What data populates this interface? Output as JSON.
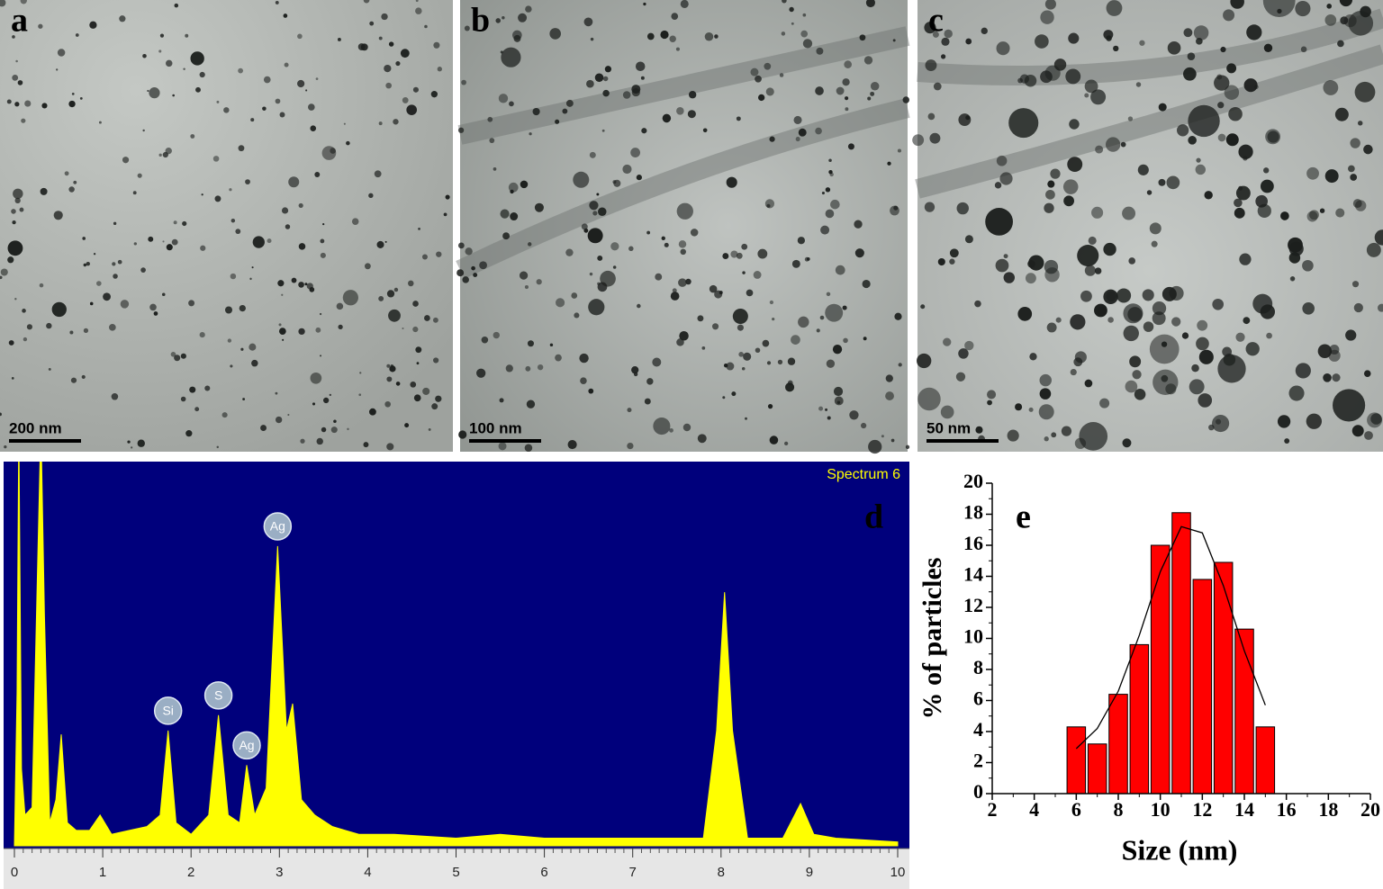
{
  "panels": [
    {
      "label": "a",
      "scale_bar": "200 nm"
    },
    {
      "label": "b",
      "scale_bar": "100 nm"
    },
    {
      "label": "c",
      "scale_bar": "50 nm"
    }
  ],
  "chart_data": [
    {
      "type": "area",
      "label": "d",
      "title": "Spectrum 6",
      "color": "#ffff00",
      "x": [
        0,
        0.03,
        0.05,
        0.08,
        0.12,
        0.2,
        0.27,
        0.3,
        0.34,
        0.4,
        0.47,
        0.53,
        0.6,
        0.7,
        0.85,
        0.97,
        1.1,
        1.3,
        1.5,
        1.65,
        1.74,
        1.83,
        2.0,
        2.2,
        2.31,
        2.42,
        2.55,
        2.63,
        2.72,
        2.85,
        2.98,
        3.08,
        3.15,
        3.25,
        3.4,
        3.6,
        3.9,
        4.3,
        5,
        5.5,
        6,
        7,
        7.8,
        7.95,
        8.04,
        8.13,
        8.3,
        8.7,
        8.9,
        9.05,
        9.3,
        10
      ],
      "values": [
        0,
        40,
        110,
        20,
        8,
        10,
        80,
        110,
        60,
        6,
        12,
        29,
        6,
        4,
        4,
        8,
        3,
        4,
        5,
        8,
        30,
        6,
        3,
        8,
        34,
        8,
        6,
        21,
        8,
        15,
        78,
        30,
        37,
        12,
        8,
        5,
        3,
        3,
        2,
        3,
        2,
        2,
        2,
        30,
        66,
        30,
        2,
        2,
        11,
        3,
        2,
        1
      ],
      "xlim": [
        0,
        10
      ],
      "xticks": [
        0,
        1,
        2,
        3,
        4,
        5,
        6,
        7,
        8,
        9,
        10
      ],
      "ylim": [
        0,
        100
      ],
      "peak_labels": [
        {
          "label": "Si",
          "x": 1.74
        },
        {
          "label": "S",
          "x": 2.31
        },
        {
          "label": "Ag",
          "x": 2.63
        },
        {
          "label": "Ag",
          "x": 2.98
        }
      ]
    },
    {
      "type": "histogram",
      "label": "e",
      "color": "#ff0000",
      "x_label": "Size (nm)",
      "y_label": "% of particles",
      "bins": [
        5.5,
        6.5,
        7.5,
        8.5,
        9.5,
        10.5,
        11.5,
        12.5,
        13.5,
        14.5,
        15.5
      ],
      "values": [
        4.3,
        3.2,
        6.4,
        9.6,
        16,
        18.1,
        13.8,
        14.9,
        10.6,
        4.3
      ],
      "fit": {
        "x": [
          6,
          7,
          8,
          9,
          10,
          11,
          12,
          13,
          14,
          15
        ],
        "values": [
          2.9,
          4.2,
          6.6,
          10.2,
          14.3,
          17.2,
          16.8,
          13.4,
          9.2,
          5.7
        ]
      },
      "xlim": [
        2,
        20
      ],
      "xticks": [
        2,
        4,
        6,
        8,
        10,
        12,
        14,
        16,
        18,
        20
      ],
      "ylim": [
        0,
        20
      ],
      "yticks": [
        0,
        2,
        4,
        6,
        8,
        10,
        12,
        14,
        16,
        18,
        20
      ]
    }
  ]
}
